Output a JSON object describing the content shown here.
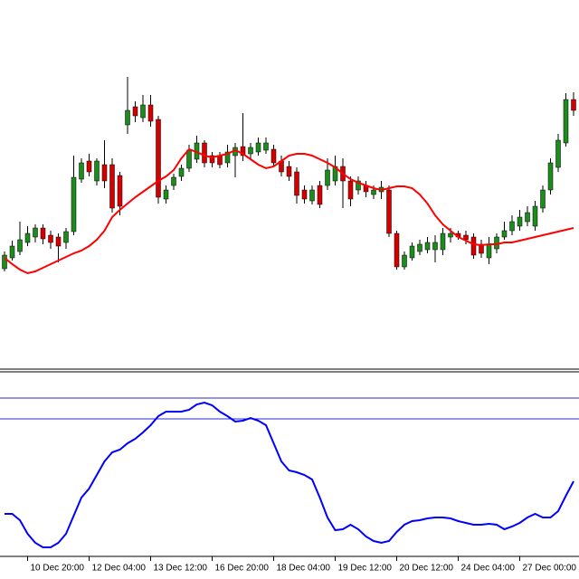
{
  "chart_data": [
    {
      "type": "candlestick",
      "categories": [
        null,
        null,
        null,
        "10 Dec 20:00",
        null,
        null,
        null,
        null,
        null,
        null,
        null,
        "12 Dec 04:00",
        null,
        null,
        null,
        null,
        null,
        null,
        null,
        "13 Dec 12:00",
        null,
        null,
        null,
        null,
        null,
        null,
        null,
        "16 Dec 20:00",
        null,
        null,
        null,
        null,
        null,
        null,
        null,
        "18 Dec 04:00",
        null,
        null,
        null,
        null,
        null,
        null,
        null,
        "19 Dec 12:00",
        null,
        null,
        null,
        null,
        null,
        null,
        null,
        "20 Dec 12:00",
        null,
        null,
        null,
        null,
        null,
        null,
        null,
        "24 Dec 04:00",
        null,
        null,
        null,
        null,
        null,
        null,
        null,
        "27 Dec 00:00",
        null,
        null,
        null,
        null,
        null,
        null,
        null
      ],
      "open": [
        113,
        125,
        132,
        142,
        148,
        158,
        150,
        148,
        142,
        154,
        212,
        232,
        210,
        228,
        228,
        216,
        272,
        292,
        280,
        294,
        278,
        190,
        205,
        215,
        224,
        234,
        252,
        238,
        238,
        230,
        238,
        248,
        240,
        242,
        244,
        245,
        232,
        226,
        220,
        200,
        188,
        205,
        205,
        210,
        226,
        210,
        200,
        205,
        195,
        198,
        200,
        152,
        115,
        125,
        132,
        134,
        134,
        134,
        148,
        152,
        150,
        148,
        140,
        125,
        135,
        148,
        155,
        160,
        165,
        160,
        180,
        200,
        225,
        252,
        300
      ],
      "high": [
        132,
        144,
        165,
        160,
        162,
        162,
        155,
        152,
        158,
        238,
        235,
        240,
        235,
        255,
        235,
        220,
        325,
        298,
        305,
        305,
        282,
        205,
        218,
        228,
        250,
        260,
        255,
        242,
        242,
        250,
        252,
        285,
        252,
        258,
        258,
        250,
        238,
        232,
        225,
        205,
        205,
        210,
        235,
        238,
        235,
        215,
        215,
        210,
        205,
        210,
        205,
        155,
        132,
        142,
        145,
        148,
        150,
        158,
        158,
        155,
        155,
        152,
        145,
        148,
        152,
        165,
        172,
        178,
        182,
        188,
        205,
        235,
        262,
        307,
        308
      ],
      "low": [
        110,
        122,
        128,
        138,
        142,
        140,
        135,
        120,
        135,
        150,
        208,
        215,
        205,
        202,
        175,
        172,
        262,
        275,
        275,
        270,
        185,
        185,
        200,
        210,
        220,
        230,
        225,
        225,
        224,
        225,
        214,
        232,
        235,
        238,
        240,
        225,
        215,
        210,
        185,
        185,
        184,
        180,
        200,
        205,
        180,
        182,
        195,
        192,
        190,
        190,
        148,
        112,
        112,
        122,
        128,
        130,
        120,
        128,
        142,
        145,
        140,
        124,
        125,
        118,
        130,
        145,
        150,
        155,
        160,
        155,
        175,
        195,
        220,
        248,
        282
      ],
      "close": [
        128,
        138,
        145,
        152,
        158,
        146,
        142,
        138,
        154,
        214,
        230,
        220,
        232,
        210,
        180,
        182,
        288,
        282,
        294,
        276,
        192,
        200,
        214,
        224,
        244,
        252,
        230,
        230,
        228,
        242,
        247,
        238,
        247,
        252,
        252,
        230,
        220,
        215,
        194,
        190,
        200,
        184,
        222,
        226,
        210,
        190,
        210,
        198,
        200,
        203,
        152,
        115,
        128,
        138,
        140,
        142,
        142,
        152,
        152,
        148,
        145,
        128,
        130,
        140,
        148,
        155,
        165,
        170,
        175,
        182,
        200,
        230,
        255,
        300,
        288
      ],
      "up_color": "#1c8c1c",
      "down_color": "#d40000",
      "ma": {
        "color": "#ff0000",
        "values": [
          125,
          118,
          112,
          108,
          110,
          114,
          118,
          122,
          126,
          130,
          133,
          138,
          145,
          155,
          170,
          178,
          185,
          192,
          198,
          204,
          210,
          215,
          222,
          235,
          245,
          242,
          238,
          236,
          238,
          240,
          244,
          240,
          234,
          228,
          224,
          226,
          232,
          238,
          240,
          240,
          238,
          234,
          230,
          225,
          218,
          212,
          208,
          205,
          202,
          200,
          202,
          204,
          204,
          202,
          195,
          185,
          172,
          162,
          155,
          148,
          144,
          140,
          139,
          140,
          140,
          142,
          142,
          144,
          146,
          148,
          150,
          152,
          154,
          156,
          158
        ]
      },
      "ylim": [
        5,
        410
      ]
    },
    {
      "type": "line",
      "color": "#0000ff",
      "values": [
        47,
        47,
        40,
        25,
        15,
        10,
        10,
        15,
        25,
        45,
        65,
        75,
        90,
        105,
        115,
        118,
        125,
        130,
        137,
        145,
        155,
        160,
        160,
        160,
        162,
        168,
        170,
        167,
        160,
        155,
        149,
        150,
        153,
        150,
        145,
        125,
        105,
        95,
        93,
        90,
        85,
        65,
        43,
        29,
        30,
        35,
        30,
        22,
        17,
        15,
        17,
        27,
        35,
        39,
        40,
        42,
        43,
        43,
        42,
        39,
        37,
        35,
        35,
        36,
        35,
        30,
        33,
        37,
        43,
        47,
        43,
        43,
        50,
        67,
        83
      ],
      "levels": [
        175,
        152
      ],
      "level_color": "#2828d0",
      "ylim": [
        0,
        203
      ]
    }
  ]
}
